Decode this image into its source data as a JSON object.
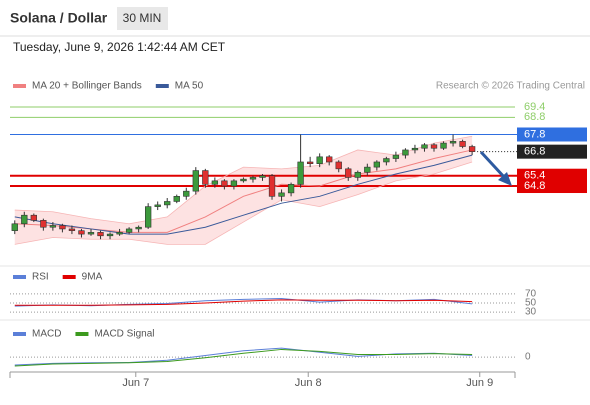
{
  "header": {
    "title": "Solana / Dollar",
    "interval": "30 MIN",
    "datetime": "Tuesday, June 9, 2026 1:42:44 AM CET",
    "credit": "Research © 2026 Trading Central"
  },
  "chart_data": [
    {
      "type": "candlestick",
      "xlim": [
        -0.5,
        52.5
      ],
      "ylim": [
        60.2,
        70.1
      ],
      "x": [
        0,
        1,
        2,
        3,
        4,
        5,
        6,
        7,
        8,
        9,
        10,
        11,
        12,
        13,
        14,
        15,
        16,
        17,
        18,
        19,
        20,
        21,
        22,
        23,
        24,
        25,
        26,
        27,
        28,
        29,
        30,
        31,
        32,
        33,
        34,
        35,
        36,
        37,
        38,
        39,
        40,
        41,
        42,
        43,
        44,
        45,
        46,
        47,
        48
      ],
      "open": [
        62.2,
        62.6,
        63.1,
        62.8,
        62.4,
        62.5,
        62.3,
        62.2,
        62.0,
        62.1,
        61.9,
        62.0,
        62.1,
        62.3,
        62.4,
        63.6,
        63.7,
        63.9,
        64.2,
        64.5,
        65.7,
        64.9,
        65.1,
        64.8,
        65.1,
        65.2,
        65.3,
        65.4,
        64.2,
        64.4,
        64.9,
        66.2,
        66.1,
        66.5,
        66.2,
        65.8,
        65.3,
        65.6,
        65.9,
        66.2,
        66.4,
        66.6,
        66.9,
        67.0,
        67.2,
        67.0,
        67.3,
        67.4,
        67.1
      ],
      "high": [
        62.8,
        63.3,
        63.2,
        62.9,
        62.7,
        62.6,
        62.5,
        62.3,
        62.3,
        62.2,
        62.1,
        62.3,
        62.4,
        62.5,
        63.8,
        63.9,
        64.1,
        64.3,
        64.7,
        65.9,
        65.8,
        65.3,
        65.2,
        65.2,
        65.3,
        65.4,
        65.5,
        65.5,
        64.6,
        65.0,
        67.8,
        66.5,
        66.7,
        66.6,
        66.3,
        65.9,
        65.7,
        66.1,
        66.3,
        66.5,
        66.8,
        67.0,
        67.2,
        67.3,
        67.3,
        67.4,
        67.8,
        67.5,
        67.2
      ],
      "low": [
        62.0,
        62.4,
        62.7,
        62.2,
        62.2,
        62.1,
        62.0,
        61.8,
        61.9,
        61.7,
        61.7,
        61.9,
        62.0,
        62.1,
        62.3,
        63.4,
        63.5,
        63.8,
        64.0,
        64.3,
        64.7,
        64.7,
        64.6,
        64.6,
        65.0,
        65.0,
        65.1,
        64.0,
        63.9,
        64.2,
        64.7,
        65.9,
        65.9,
        66.0,
        65.6,
        65.1,
        65.1,
        65.4,
        65.7,
        66.0,
        66.2,
        66.4,
        66.7,
        66.8,
        66.8,
        66.9,
        67.1,
        67.0,
        66.6
      ],
      "close": [
        62.6,
        63.1,
        62.8,
        62.4,
        62.5,
        62.3,
        62.2,
        62.0,
        62.1,
        61.9,
        62.0,
        62.1,
        62.3,
        62.4,
        63.6,
        63.7,
        63.9,
        64.2,
        64.5,
        65.7,
        64.9,
        65.1,
        64.8,
        65.1,
        65.2,
        65.3,
        65.4,
        64.2,
        64.4,
        64.9,
        66.2,
        66.1,
        66.5,
        66.2,
        65.8,
        65.3,
        65.6,
        65.9,
        66.2,
        66.4,
        66.6,
        66.9,
        67.0,
        67.2,
        67.0,
        67.3,
        67.4,
        67.1,
        66.8
      ],
      "up_color": "#3c9a3c",
      "down_color": "#e03030",
      "series": [
        {
          "name": "MA 20 + Bollinger Bands",
          "color": "#f08080",
          "band_color": "#fde2e2",
          "x": [
            0,
            4,
            8,
            12,
            16,
            20,
            24,
            28,
            32,
            36,
            40,
            44,
            48
          ],
          "values": [
            62.6,
            62.5,
            62.3,
            62.1,
            62.1,
            63.0,
            64.2,
            64.9,
            64.8,
            65.5,
            65.8,
            66.4,
            66.9
          ],
          "upper": [
            63.4,
            63.3,
            62.9,
            62.6,
            63.0,
            64.8,
            65.9,
            65.8,
            66.0,
            66.9,
            66.6,
            67.3,
            67.7
          ],
          "lower": [
            61.4,
            61.8,
            61.7,
            61.7,
            61.4,
            61.4,
            62.7,
            64.0,
            63.6,
            64.3,
            65.1,
            65.5,
            66.2
          ]
        },
        {
          "name": "MA 50",
          "color": "#3a5a9a",
          "x": [
            0,
            4,
            8,
            12,
            16,
            20,
            24,
            28,
            32,
            36,
            40,
            44,
            48
          ],
          "values": [
            63.0,
            62.6,
            62.3,
            62.0,
            62.0,
            62.4,
            63.1,
            63.8,
            64.2,
            64.9,
            65.5,
            66.0,
            66.6
          ]
        }
      ],
      "levels": [
        {
          "value": 69.4,
          "color": "#8fce6a",
          "boxed": false
        },
        {
          "value": 68.8,
          "color": "#8fce6a",
          "boxed": false
        },
        {
          "value": 67.8,
          "color": "#2f6fe0",
          "boxed": true
        },
        {
          "value": 66.8,
          "color": "#222222",
          "boxed": true,
          "dashed": true
        },
        {
          "value": 65.4,
          "color": "#e00000",
          "boxed": true
        },
        {
          "value": 64.8,
          "color": "#e00000",
          "boxed": true
        }
      ]
    },
    {
      "type": "line",
      "xlim": [
        -0.5,
        52.5
      ],
      "ylim": [
        17,
        83
      ],
      "yticks": [
        70,
        50,
        30
      ],
      "series": [
        {
          "name": "RSI",
          "color": "#5b7fd8",
          "x": [
            0,
            4,
            8,
            12,
            16,
            20,
            24,
            28,
            32,
            36,
            40,
            44,
            48
          ],
          "values": [
            43,
            46,
            44,
            47,
            49,
            55,
            58,
            60,
            52,
            57,
            55,
            58,
            48
          ]
        },
        {
          "name": "9MA",
          "color": "#e00000",
          "x": [
            0,
            4,
            8,
            12,
            16,
            20,
            24,
            28,
            32,
            36,
            40,
            44,
            48
          ],
          "values": [
            45,
            45,
            45,
            46,
            47,
            50,
            54,
            57,
            56,
            56,
            55,
            56,
            53
          ]
        }
      ]
    },
    {
      "type": "line",
      "xlim": [
        -0.5,
        52.5
      ],
      "ylim": [
        -0.47,
        0.6
      ],
      "yticks": [
        0
      ],
      "xticks": [
        {
          "value": 12.7,
          "label": "Jun 7"
        },
        {
          "value": 30.8,
          "label": "Jun 8"
        },
        {
          "value": 48.8,
          "label": "Jun 9"
        }
      ],
      "series": [
        {
          "name": "MACD",
          "color": "#5b7fd8",
          "x": [
            0,
            4,
            8,
            12,
            16,
            20,
            24,
            28,
            32,
            36,
            40,
            44,
            48
          ],
          "values": [
            -0.25,
            -0.2,
            -0.18,
            -0.17,
            -0.1,
            0.05,
            0.2,
            0.28,
            0.15,
            0.02,
            0.1,
            0.12,
            0.05
          ]
        },
        {
          "name": "MACD Signal",
          "color": "#3c9a1e",
          "x": [
            0,
            4,
            8,
            12,
            16,
            20,
            24,
            28,
            32,
            36,
            40,
            44,
            48
          ],
          "values": [
            -0.28,
            -0.22,
            -0.2,
            -0.18,
            -0.14,
            -0.02,
            0.12,
            0.24,
            0.18,
            0.08,
            0.08,
            0.11,
            0.08
          ]
        }
      ]
    }
  ]
}
